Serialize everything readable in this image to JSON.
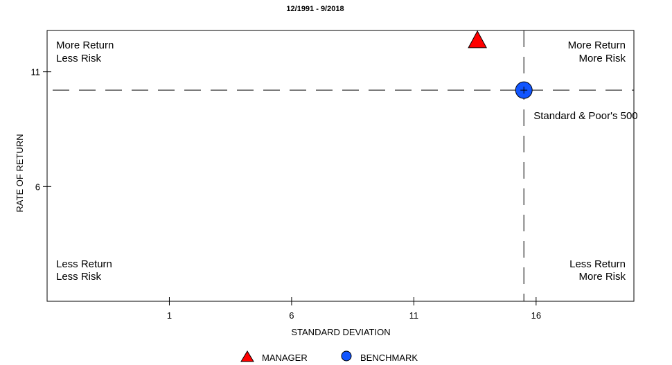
{
  "chart_data": {
    "type": "scatter",
    "title": "12/1991 - 9/2018",
    "xlabel": "STANDARD DEVIATION",
    "ylabel": "RATE OF RETURN",
    "xlim": [
      -4,
      20
    ],
    "ylim": [
      1.0,
      12.8
    ],
    "xticks": [
      1,
      6,
      11,
      16
    ],
    "yticks": [
      6,
      11
    ],
    "quadrants": {
      "top_left": [
        "More Return",
        "Less Risk"
      ],
      "top_right": [
        "More Return",
        "More Risk"
      ],
      "bottom_left": [
        "Less Return",
        "Less Risk"
      ],
      "bottom_right": [
        "Less Return",
        "More Risk"
      ]
    },
    "series": [
      {
        "name": "MANAGER",
        "marker": "triangle",
        "color": "#ff0000",
        "x": 13.6,
        "y": 12.35,
        "label": ""
      },
      {
        "name": "BENCHMARK",
        "marker": "circle",
        "color": "#1155ff",
        "x": 15.5,
        "y": 10.2,
        "label": "Standard & Poor's 500"
      }
    ],
    "reference_lines": {
      "x": 15.5,
      "y": 10.2
    },
    "legend": [
      "MANAGER",
      "BENCHMARK"
    ],
    "legend_position": "bottom-center"
  }
}
